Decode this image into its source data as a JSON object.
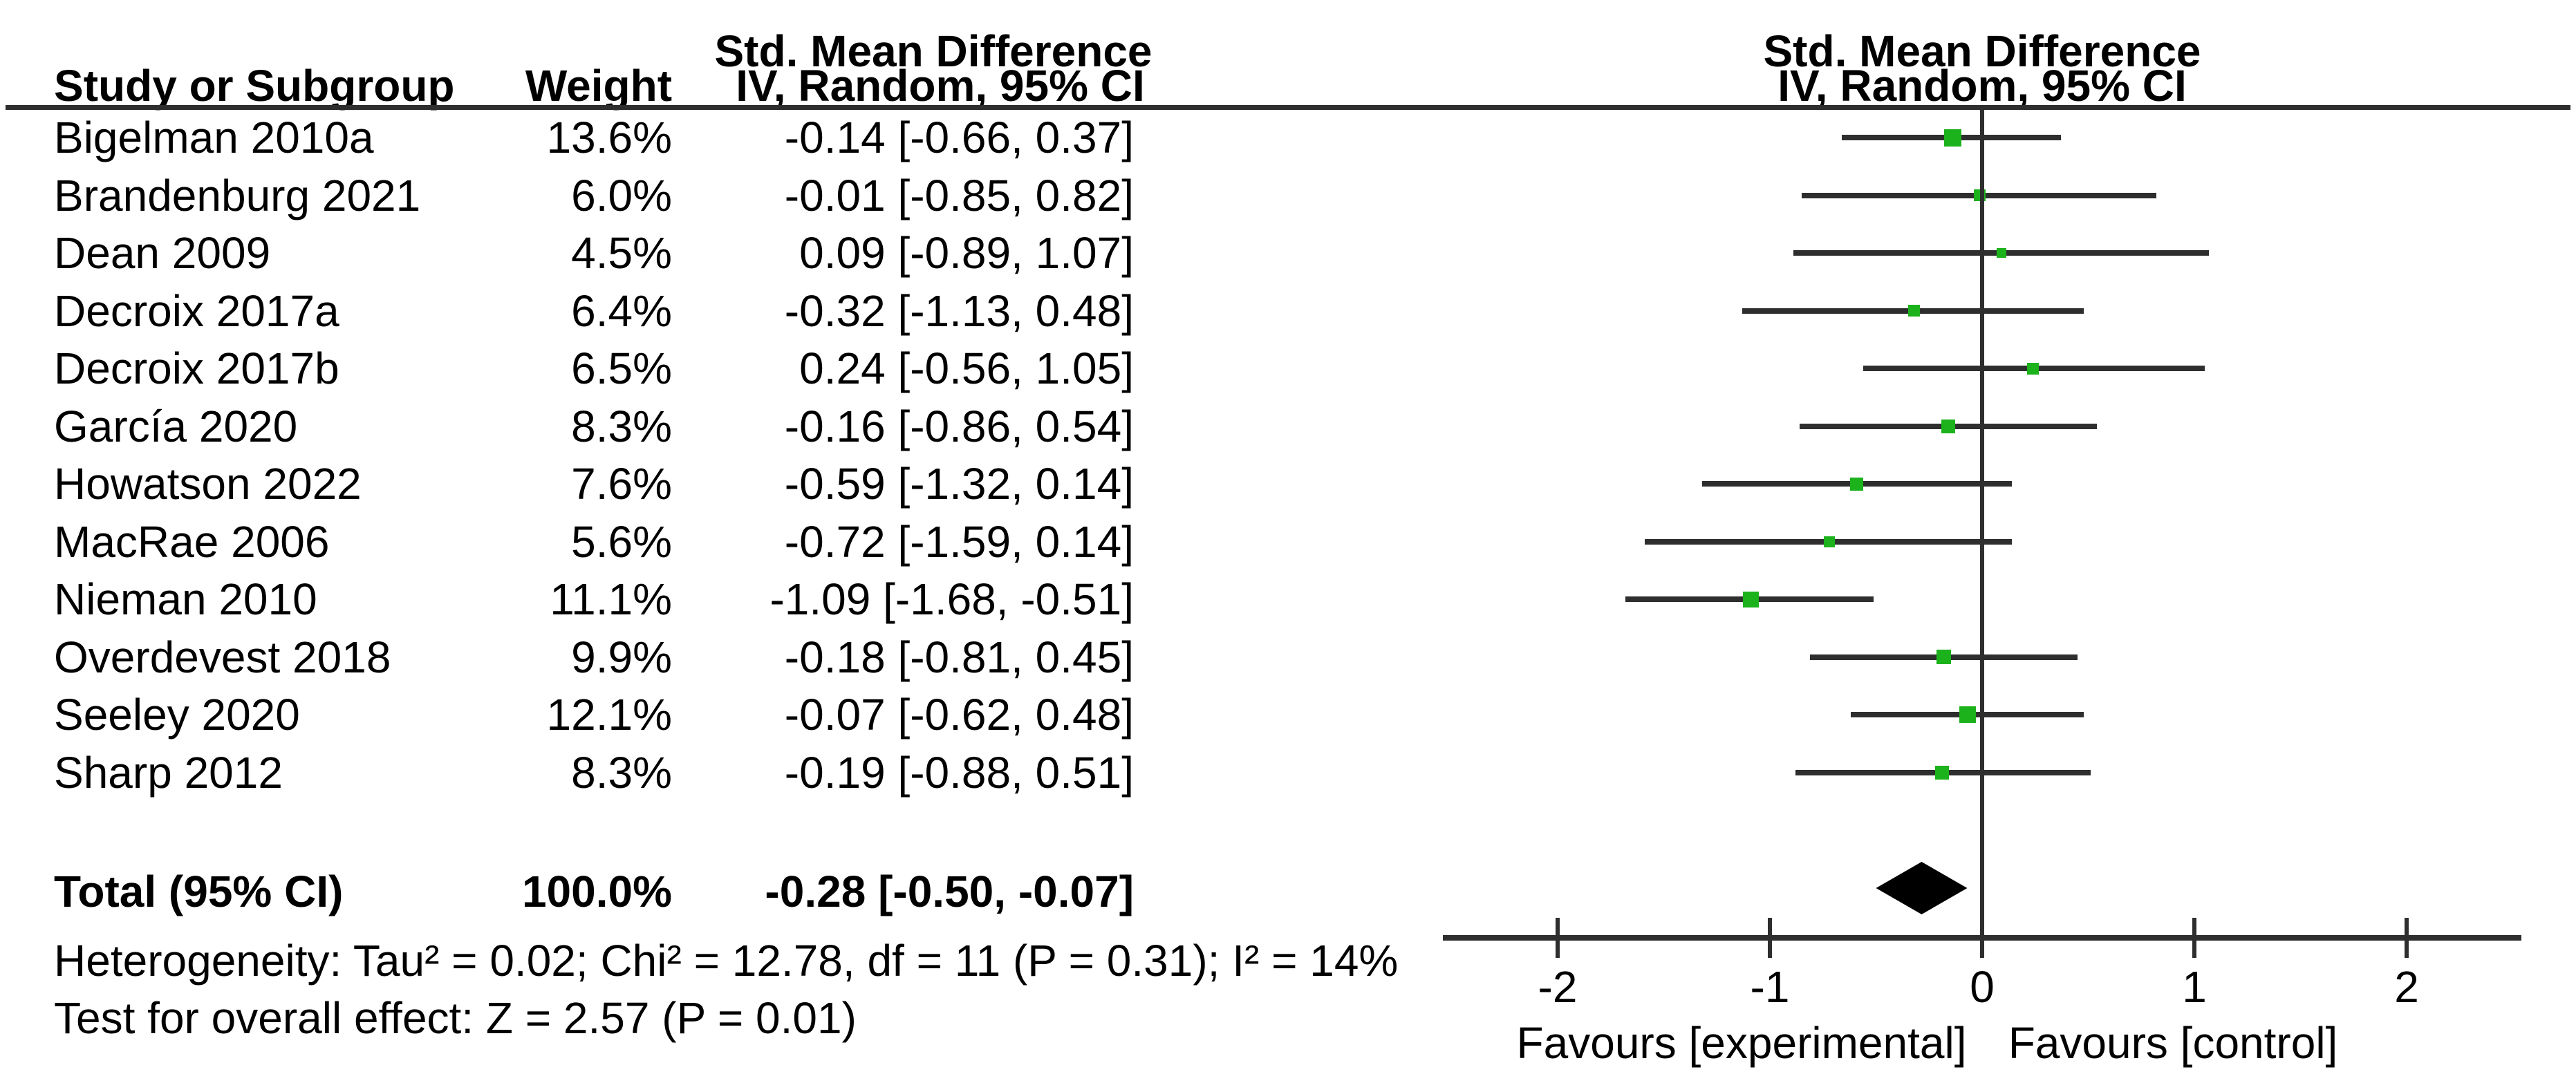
{
  "header": {
    "left_title": "Std. Mean Difference",
    "col_study": "Study or Subgroup",
    "col_weight": "Weight",
    "col_effect": "IV, Random, 95% CI",
    "right_title_line1": "Std. Mean Difference",
    "right_title_line2": "IV, Random, 95% CI"
  },
  "chart_data": {
    "type": "forest",
    "effect_measure": "Std. Mean Difference",
    "method": "IV, Random, 95% CI",
    "studies": [
      {
        "name": "Bigelman 2010a",
        "weight_label": "13.6%",
        "weight_pct": 13.6,
        "smd": -0.14,
        "ci_low": -0.66,
        "ci_high": 0.37,
        "estimate_label": "-0.14 [-0.66, 0.37]"
      },
      {
        "name": "Brandenburg 2021",
        "weight_label": "6.0%",
        "weight_pct": 6.0,
        "smd": -0.01,
        "ci_low": -0.85,
        "ci_high": 0.82,
        "estimate_label": "-0.01 [-0.85, 0.82]"
      },
      {
        "name": "Dean 2009",
        "weight_label": "4.5%",
        "weight_pct": 4.5,
        "smd": 0.09,
        "ci_low": -0.89,
        "ci_high": 1.07,
        "estimate_label": "0.09 [-0.89, 1.07]"
      },
      {
        "name": "Decroix 2017a",
        "weight_label": "6.4%",
        "weight_pct": 6.4,
        "smd": -0.32,
        "ci_low": -1.13,
        "ci_high": 0.48,
        "estimate_label": "-0.32 [-1.13, 0.48]"
      },
      {
        "name": "Decroix 2017b",
        "weight_label": "6.5%",
        "weight_pct": 6.5,
        "smd": 0.24,
        "ci_low": -0.56,
        "ci_high": 1.05,
        "estimate_label": "0.24 [-0.56, 1.05]"
      },
      {
        "name": "García 2020",
        "weight_label": "8.3%",
        "weight_pct": 8.3,
        "smd": -0.16,
        "ci_low": -0.86,
        "ci_high": 0.54,
        "estimate_label": "-0.16 [-0.86, 0.54]"
      },
      {
        "name": "Howatson 2022",
        "weight_label": "7.6%",
        "weight_pct": 7.6,
        "smd": -0.59,
        "ci_low": -1.32,
        "ci_high": 0.14,
        "estimate_label": "-0.59 [-1.32, 0.14]"
      },
      {
        "name": "MacRae 2006",
        "weight_label": "5.6%",
        "weight_pct": 5.6,
        "smd": -0.72,
        "ci_low": -1.59,
        "ci_high": 0.14,
        "estimate_label": "-0.72 [-1.59, 0.14]"
      },
      {
        "name": "Nieman 2010",
        "weight_label": "11.1%",
        "weight_pct": 11.1,
        "smd": -1.09,
        "ci_low": -1.68,
        "ci_high": -0.51,
        "estimate_label": "-1.09 [-1.68, -0.51]"
      },
      {
        "name": "Overdevest 2018",
        "weight_label": "9.9%",
        "weight_pct": 9.9,
        "smd": -0.18,
        "ci_low": -0.81,
        "ci_high": 0.45,
        "estimate_label": "-0.18 [-0.81, 0.45]"
      },
      {
        "name": "Seeley 2020",
        "weight_label": "12.1%",
        "weight_pct": 12.1,
        "smd": -0.07,
        "ci_low": -0.62,
        "ci_high": 0.48,
        "estimate_label": "-0.07 [-0.62, 0.48]"
      },
      {
        "name": "Sharp 2012",
        "weight_label": "8.3%",
        "weight_pct": 8.3,
        "smd": -0.19,
        "ci_low": -0.88,
        "ci_high": 0.51,
        "estimate_label": "-0.19 [-0.88, 0.51]"
      }
    ],
    "total": {
      "label": "Total (95% CI)",
      "weight_label": "100.0%",
      "smd": -0.28,
      "ci_low": -0.5,
      "ci_high": -0.07,
      "estimate_label": "-0.28 [-0.50, -0.07]"
    },
    "heterogeneity": "Heterogeneity: Tau² = 0.02; Chi² = 12.78, df = 11 (P = 0.31); I² = 14%",
    "overall_effect": "Test for overall effect: Z = 2.57 (P = 0.01)",
    "axis": {
      "xmin": -2.54,
      "xmax": 2.54,
      "ticks": [
        -2,
        -1,
        0,
        1,
        2
      ],
      "tick_labels": [
        "-2",
        "-1",
        "0",
        "1",
        "2"
      ]
    },
    "footer_left": "Favours [experimental]",
    "footer_right": "Favours [control]",
    "colors": {
      "square": "#1CB21C",
      "line": "#2e2e2e",
      "diamond": "#000000",
      "text": "#000000"
    }
  }
}
